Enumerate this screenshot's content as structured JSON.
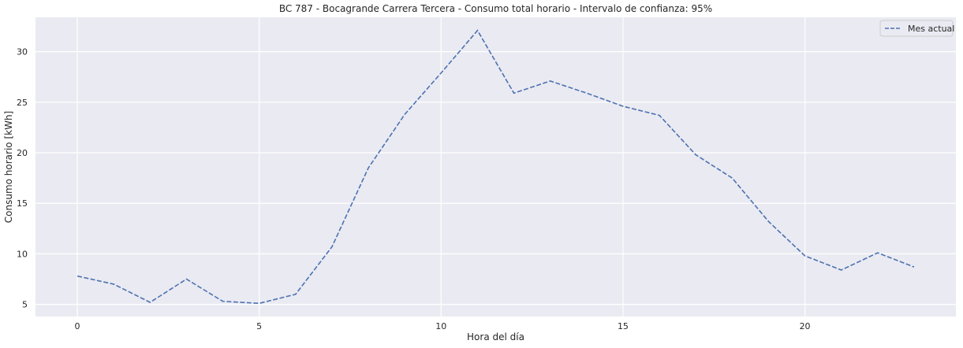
{
  "chart_data": {
    "type": "line",
    "title": "BC 787 - Bocagrande Carrera Tercera - Consumo total horario - Intervalo de confianza: 95%",
    "xlabel": "Hora del día",
    "ylabel": "Consumo horario [kWh]",
    "x": [
      0,
      1,
      2,
      3,
      4,
      5,
      6,
      7,
      8,
      9,
      10,
      11,
      12,
      13,
      14,
      15,
      16,
      17,
      18,
      19,
      20,
      21,
      22,
      23
    ],
    "series": [
      {
        "name": "Mes actual",
        "values": [
          7.8,
          7.0,
          5.2,
          7.5,
          5.3,
          5.1,
          6.0,
          10.7,
          18.5,
          23.8,
          27.9,
          32.1,
          25.9,
          27.1,
          25.9,
          24.6,
          23.7,
          19.8,
          17.5,
          13.2,
          9.8,
          8.4,
          10.1,
          8.7
        ],
        "color": "#4c72b0",
        "style": "dashed"
      }
    ],
    "xticks": [
      0,
      5,
      10,
      15,
      20
    ],
    "xtick_labels": [
      "0",
      "5",
      "10",
      "15",
      "20"
    ],
    "yticks": [
      5,
      10,
      15,
      20,
      25,
      30
    ],
    "ytick_labels": [
      "5",
      "10",
      "15",
      "20",
      "25",
      "30"
    ],
    "xlim": [
      -1.15,
      24.15
    ],
    "ylim": [
      3.8,
      33.4
    ],
    "grid": true,
    "legend_position": "top-right",
    "background_color": "#eaeaf2",
    "grid_color": "#ffffff"
  }
}
